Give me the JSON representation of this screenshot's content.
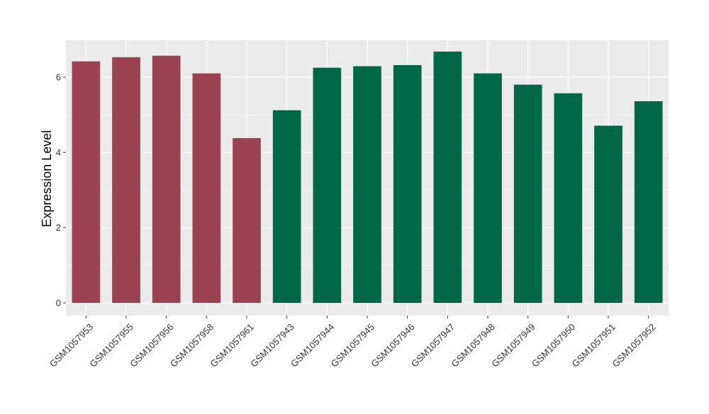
{
  "chart_data": {
    "type": "bar",
    "title": "",
    "xlabel": "",
    "ylabel": "Expression Level",
    "ylim": [
      0,
      7
    ],
    "yticks": [
      0,
      2,
      4,
      6
    ],
    "grid": true,
    "panel_background": "#EBEBEB",
    "grid_color": "#FFFFFF",
    "categories": [
      "GSM1057953",
      "GSM1057955",
      "GSM1057956",
      "GSM1057958",
      "GSM1057961",
      "GSM1057943",
      "GSM1057944",
      "GSM1057945",
      "GSM1057946",
      "GSM1057947",
      "GSM1057948",
      "GSM1057949",
      "GSM1057950",
      "GSM1057951",
      "GSM1057952"
    ],
    "values": [
      6.42,
      6.53,
      6.57,
      6.1,
      4.38,
      5.12,
      6.25,
      6.29,
      6.32,
      6.68,
      6.1,
      5.8,
      5.57,
      4.71,
      5.36
    ],
    "bar_colors": [
      "#9A4250",
      "#9A4250",
      "#9A4250",
      "#9A4250",
      "#9A4250",
      "#006846",
      "#006846",
      "#006846",
      "#006846",
      "#006846",
      "#006846",
      "#006846",
      "#006846",
      "#006846",
      "#006846"
    ]
  }
}
